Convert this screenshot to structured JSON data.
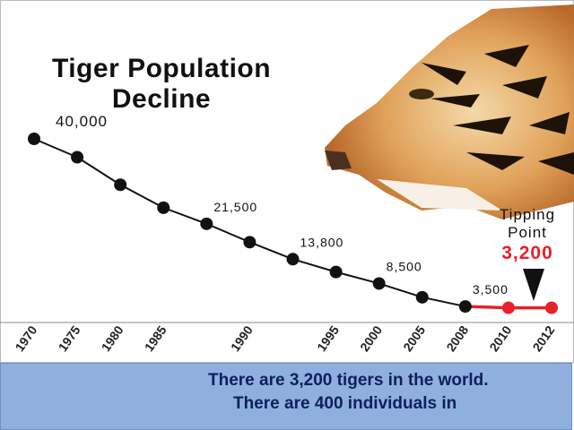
{
  "chart_data": {
    "type": "line",
    "title": "Tiger Population Decline",
    "categories": [
      "1970",
      "1975",
      "1980",
      "1985",
      null,
      "1990",
      null,
      "1995",
      "2000",
      "2005",
      "2008",
      "2010",
      "2012"
    ],
    "values": [
      40000,
      36000,
      30000,
      25000,
      21500,
      17500,
      13800,
      11000,
      8500,
      5500,
      3500,
      3200,
      3200
    ],
    "value_labels": [
      "40,000",
      null,
      null,
      null,
      "21,500",
      null,
      "13,800",
      null,
      "8,500",
      null,
      "3,500",
      null,
      "3,200"
    ],
    "point_colors": [
      "#111111",
      "#111111",
      "#111111",
      "#111111",
      "#111111",
      "#111111",
      "#111111",
      "#111111",
      "#111111",
      "#111111",
      "#111111",
      "#e8202a",
      "#e8202a"
    ],
    "ylim": [
      0,
      40000
    ],
    "grid": false,
    "annotation": "Tipping Point"
  },
  "text_box": {
    "paragraphs": [
      "There are 3,200 tigers in the world.",
      "There are 400 individuals in"
    ]
  }
}
